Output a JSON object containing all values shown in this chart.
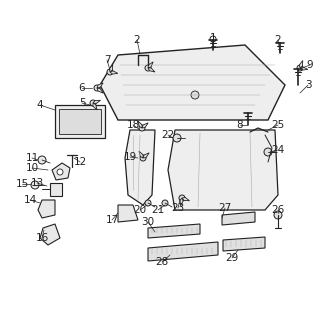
{
  "bg_color": "#ffffff",
  "line_color": "#222222",
  "label_color": "#111111",
  "figsize": [
    3.3,
    3.3
  ],
  "dpi": 100,
  "xlim": [
    0,
    330
  ],
  "ylim": [
    0,
    330
  ]
}
